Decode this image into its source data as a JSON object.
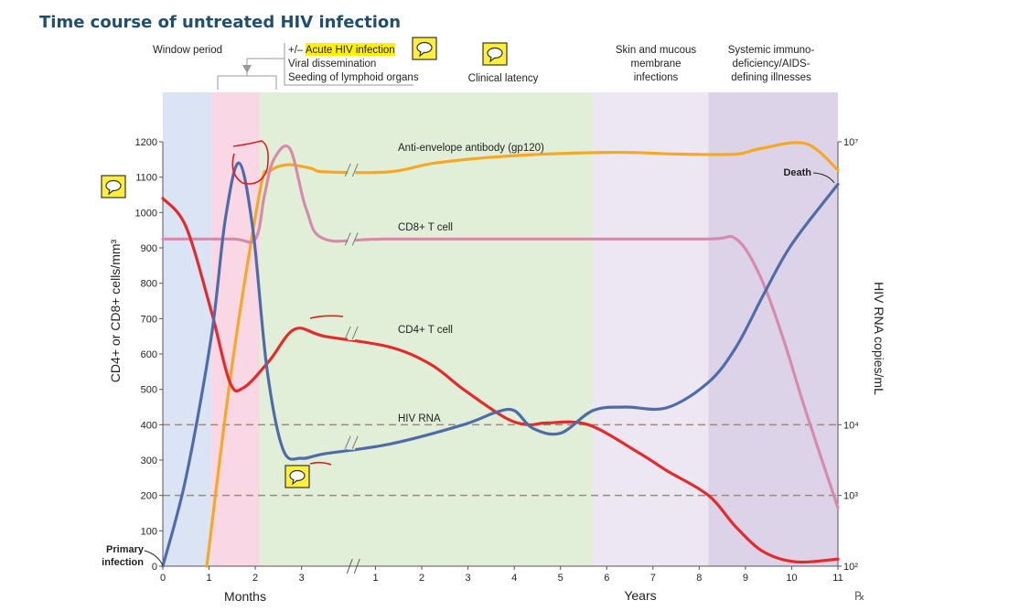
{
  "chart_data": {
    "type": "line",
    "title": "Time course of untreated HIV infection",
    "ylabel_left": "CD4+ or CD8+ cells/mm³",
    "ylabel_right": "HIV RNA copies/mL",
    "xlabel_months": "Months",
    "xlabel_years": "Years",
    "yticks_left": [
      "0",
      "100",
      "200",
      "300",
      "400",
      "500",
      "600",
      "700",
      "800",
      "900",
      "1000",
      "1100",
      "1200"
    ],
    "yticks_right": [
      {
        "label": "10²",
        "value": 0
      },
      {
        "label": "10³",
        "value": 200
      },
      {
        "label": "10⁴",
        "value": 400
      },
      {
        "label": "10⁷",
        "value": 1200
      }
    ],
    "xticks_months": [
      "0",
      "1",
      "2",
      "3"
    ],
    "xticks_years": [
      "1",
      "2",
      "3",
      "4",
      "5",
      "6",
      "7",
      "8",
      "9",
      "10",
      "11"
    ],
    "phases": [
      {
        "lines": [
          "Window period"
        ],
        "color": "#dbe4f4",
        "start": 0,
        "end": 1.05
      },
      {
        "lines": [
          "+/– Acute HIV infection",
          "Viral dissemination",
          "Seeding of lymphoid organs"
        ],
        "highlight": "Acute HIV infection",
        "color": "#f9d7e5",
        "start": 1.05,
        "end": 2.1
      },
      {
        "lines": [
          "Clinical latency"
        ],
        "color": "#e1efd9",
        "start": 2.1,
        "end": 9.3
      },
      {
        "lines": [
          "Skin and mucous",
          "membrane",
          "infections"
        ],
        "color": "#ece7f3",
        "start": 9.3,
        "end": 11.8
      },
      {
        "lines": [
          "Systemic immuno-",
          "deficiency/AIDS-",
          "defining illnesses"
        ],
        "color": "#ddd3e8",
        "start": 11.8,
        "end": 14.6
      }
    ],
    "series": [
      {
        "name": "Anti-envelope antibody (gp120)",
        "color": "#f7a823",
        "x": [
          0.95,
          1.5,
          2.1,
          2.3,
          2.7,
          3.2,
          3.5,
          4.9,
          5.9,
          7.5,
          9.7,
          11.2,
          12.4,
          12.9,
          13.9,
          14.6
        ],
        "y": [
          0,
          570,
          1060,
          1115,
          1135,
          1125,
          1115,
          1115,
          1140,
          1160,
          1170,
          1165,
          1165,
          1180,
          1195,
          1120
        ]
      },
      {
        "name": "CD8+ T cell",
        "color": "#d78bab",
        "x": [
          0,
          1.5,
          2.0,
          2.2,
          2.4,
          2.75,
          3.1,
          3.5,
          4.9,
          9.3,
          11.8,
          12.4,
          12.9,
          13.4,
          13.9,
          14.6
        ],
        "y": [
          925,
          925,
          925,
          1050,
          1150,
          1180,
          1010,
          925,
          925,
          925,
          925,
          925,
          825,
          650,
          440,
          165
        ]
      },
      {
        "name": "CD4+ T cell",
        "color": "#e42a2a",
        "x": [
          0,
          0.5,
          1.05,
          1.45,
          1.75,
          2.3,
          2.85,
          3.5,
          4.9,
          5.8,
          6.5,
          7.4,
          7.9,
          8.3,
          9.2,
          10.3,
          10.9,
          11.8,
          12.4,
          13.0,
          13.7,
          14.6
        ],
        "y": [
          1040,
          960,
          720,
          520,
          505,
          580,
          670,
          650,
          620,
          570,
          500,
          420,
          400,
          405,
          400,
          320,
          270,
          200,
          110,
          40,
          12,
          20
        ]
      },
      {
        "name": "HIV RNA",
        "color": "#4f6ca8",
        "x": [
          0,
          0.5,
          1.05,
          1.35,
          1.65,
          1.95,
          2.25,
          2.6,
          3.0,
          3.5,
          4.9,
          6.5,
          7.2,
          7.6,
          8.0,
          8.6,
          9.3,
          10.0,
          10.9,
          11.8,
          12.4,
          13.0,
          13.6,
          14.6
        ],
        "y": [
          0,
          250,
          650,
          980,
          1140,
          950,
          560,
          330,
          305,
          318,
          345,
          400,
          435,
          440,
          390,
          376,
          440,
          450,
          448,
          520,
          620,
          770,
          910,
          1080
        ]
      }
    ],
    "reference_lines": [
      {
        "y": 400,
        "label": "10⁴"
      },
      {
        "y": 200,
        "label": "10³"
      }
    ],
    "annotations": {
      "primary": [
        "Primary",
        "infection"
      ],
      "death": "Death",
      "months_axis_break": true
    },
    "x_axis_note": "x positions are in months for the first segment and years (offset after break) for the second",
    "grid": false
  },
  "watermark": "℞"
}
